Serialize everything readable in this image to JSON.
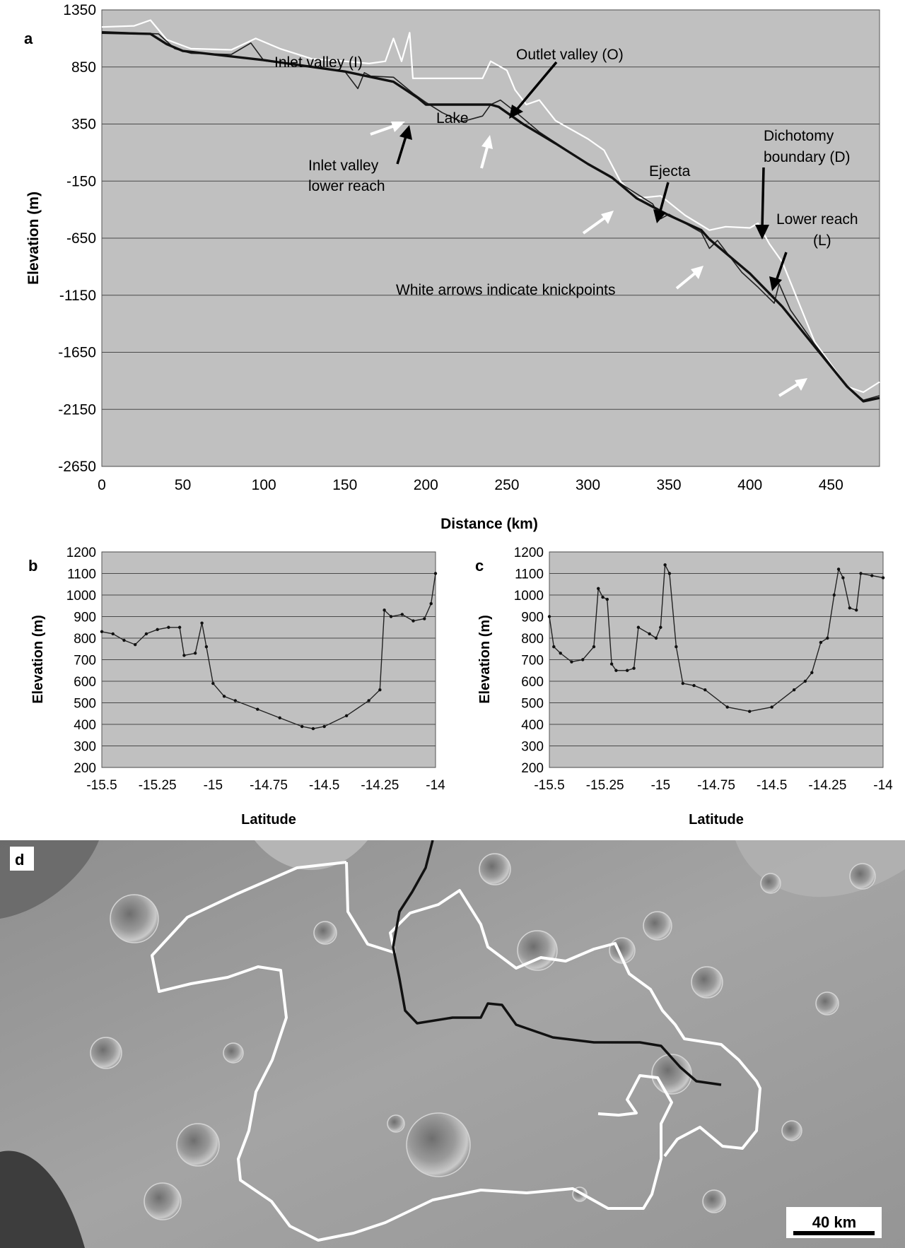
{
  "panels": {
    "a": "a",
    "b": "b",
    "c": "c",
    "d": "d"
  },
  "scale_bar": {
    "label": "40 km"
  },
  "colors": {
    "plot_bg": "#c0c0c0",
    "grid": "#4a4a4a",
    "trend": "#111111",
    "centerline": "#222222",
    "rim": "#ffffff",
    "knickpoint_arrow": "#ffffff",
    "callout_arrow": "#000000",
    "map_outline_white": "#ffffff",
    "map_outline_black": "#111111"
  },
  "chart_data": [
    {
      "panel": "a",
      "type": "line",
      "xlabel": "Distance (km)",
      "ylabel": "Elevation (m)",
      "xlim": [
        0,
        480
      ],
      "ylim": [
        -2650,
        1350
      ],
      "xticks": [
        0,
        50,
        100,
        150,
        200,
        250,
        300,
        350,
        400,
        450
      ],
      "yticks": [
        1350,
        850,
        350,
        -150,
        -650,
        -1150,
        -1650,
        -2150,
        -2650
      ],
      "grid": true,
      "series": [
        {
          "style": "thick black",
          "x": [
            0,
            30,
            40,
            50,
            100,
            150,
            180,
            195,
            200,
            240,
            245,
            260,
            280,
            300,
            315,
            330,
            350,
            370,
            375,
            400,
            420,
            440,
            460,
            470,
            480
          ],
          "y": [
            1150,
            1140,
            1050,
            990,
            910,
            810,
            720,
            580,
            520,
            520,
            500,
            350,
            180,
            0,
            -120,
            -300,
            -450,
            -580,
            -660,
            -960,
            -1250,
            -1600,
            -1950,
            -2080,
            -2050
          ]
        },
        {
          "style": "thin black",
          "x": [
            0,
            35,
            45,
            55,
            80,
            92,
            100,
            150,
            158,
            162,
            166,
            180,
            192,
            200,
            210,
            222,
            235,
            240,
            246,
            255,
            270,
            300,
            320,
            340,
            345,
            350,
            370,
            375,
            380,
            395,
            405,
            415,
            418,
            425,
            440,
            460,
            470,
            480
          ],
          "y": [
            1160,
            1140,
            1010,
            970,
            960,
            1060,
            905,
            810,
            660,
            800,
            770,
            760,
            620,
            540,
            450,
            370,
            420,
            520,
            560,
            460,
            280,
            0,
            -170,
            -350,
            -480,
            -440,
            -600,
            -740,
            -670,
            -950,
            -1080,
            -1220,
            -1050,
            -1280,
            -1580,
            -1950,
            -2070,
            -2030
          ]
        },
        {
          "style": "white",
          "x": [
            0,
            20,
            30,
            40,
            55,
            80,
            95,
            110,
            130,
            150,
            165,
            175,
            180,
            185,
            190,
            192,
            200,
            235,
            240,
            250,
            255,
            262,
            270,
            280,
            300,
            310,
            320,
            330,
            345,
            360,
            375,
            385,
            400,
            405,
            412,
            420,
            440,
            460,
            470,
            480
          ],
          "y": [
            1200,
            1210,
            1260,
            1090,
            1010,
            1000,
            1100,
            1010,
            920,
            900,
            880,
            900,
            1100,
            900,
            1150,
            750,
            750,
            750,
            900,
            820,
            650,
            520,
            560,
            380,
            220,
            120,
            -150,
            -300,
            -280,
            -450,
            -580,
            -550,
            -560,
            -520,
            -700,
            -860,
            -1560,
            -1950,
            -2000,
            -1910
          ]
        }
      ],
      "annotations": [
        "Inlet valley (I)",
        "Outlet valley (O)",
        "Lake",
        "Inlet valley",
        "lower reach",
        "Ejecta",
        "Dichotomy",
        "boundary (D)",
        "Lower reach",
        "(L)",
        "White arrows indicate knickpoints"
      ]
    },
    {
      "panel": "b",
      "type": "line",
      "xlabel": "Latitude",
      "ylabel": "Elevation (m)",
      "xlim": [
        -15.5,
        -14
      ],
      "ylim": [
        200,
        1200
      ],
      "xticks": [
        -15.5,
        -15.25,
        -15,
        -14.75,
        -14.5,
        -14.25,
        -14
      ],
      "yticks": [
        200,
        300,
        400,
        500,
        600,
        700,
        800,
        900,
        1000,
        1100,
        1200
      ],
      "grid": true,
      "x": [
        -15.5,
        -15.45,
        -15.4,
        -15.35,
        -15.3,
        -15.25,
        -15.2,
        -15.15,
        -15.13,
        -15.08,
        -15.05,
        -15.03,
        -15.0,
        -14.95,
        -14.9,
        -14.8,
        -14.7,
        -14.6,
        -14.55,
        -14.5,
        -14.4,
        -14.3,
        -14.25,
        -14.23,
        -14.2,
        -14.15,
        -14.1,
        -14.05,
        -14.02,
        -14.0
      ],
      "values": [
        830,
        820,
        790,
        770,
        820,
        840,
        850,
        850,
        720,
        730,
        870,
        760,
        590,
        530,
        510,
        470,
        430,
        390,
        380,
        390,
        440,
        510,
        560,
        930,
        900,
        910,
        880,
        890,
        960,
        1100
      ]
    },
    {
      "panel": "c",
      "type": "line",
      "xlabel": "Latitude",
      "ylabel": "Elevation (m)",
      "xlim": [
        -15.5,
        -14
      ],
      "ylim": [
        200,
        1200
      ],
      "xticks": [
        -15.5,
        -15.25,
        -15,
        -14.75,
        -14.5,
        -14.25,
        -14
      ],
      "yticks": [
        200,
        300,
        400,
        500,
        600,
        700,
        800,
        900,
        1000,
        1100,
        1200
      ],
      "grid": true,
      "x": [
        -15.5,
        -15.48,
        -15.45,
        -15.4,
        -15.35,
        -15.3,
        -15.28,
        -15.26,
        -15.24,
        -15.22,
        -15.2,
        -15.15,
        -15.12,
        -15.1,
        -15.05,
        -15.02,
        -15.0,
        -14.98,
        -14.96,
        -14.93,
        -14.9,
        -14.85,
        -14.8,
        -14.7,
        -14.6,
        -14.5,
        -14.4,
        -14.35,
        -14.32,
        -14.28,
        -14.25,
        -14.22,
        -14.2,
        -14.18,
        -14.15,
        -14.12,
        -14.1,
        -14.05,
        -14.0
      ],
      "values": [
        900,
        760,
        730,
        690,
        700,
        760,
        1030,
        990,
        980,
        680,
        650,
        650,
        660,
        850,
        820,
        800,
        850,
        1140,
        1100,
        760,
        590,
        580,
        560,
        480,
        460,
        480,
        560,
        600,
        640,
        780,
        800,
        1000,
        1120,
        1080,
        940,
        930,
        1100,
        1090,
        1080
      ]
    }
  ]
}
